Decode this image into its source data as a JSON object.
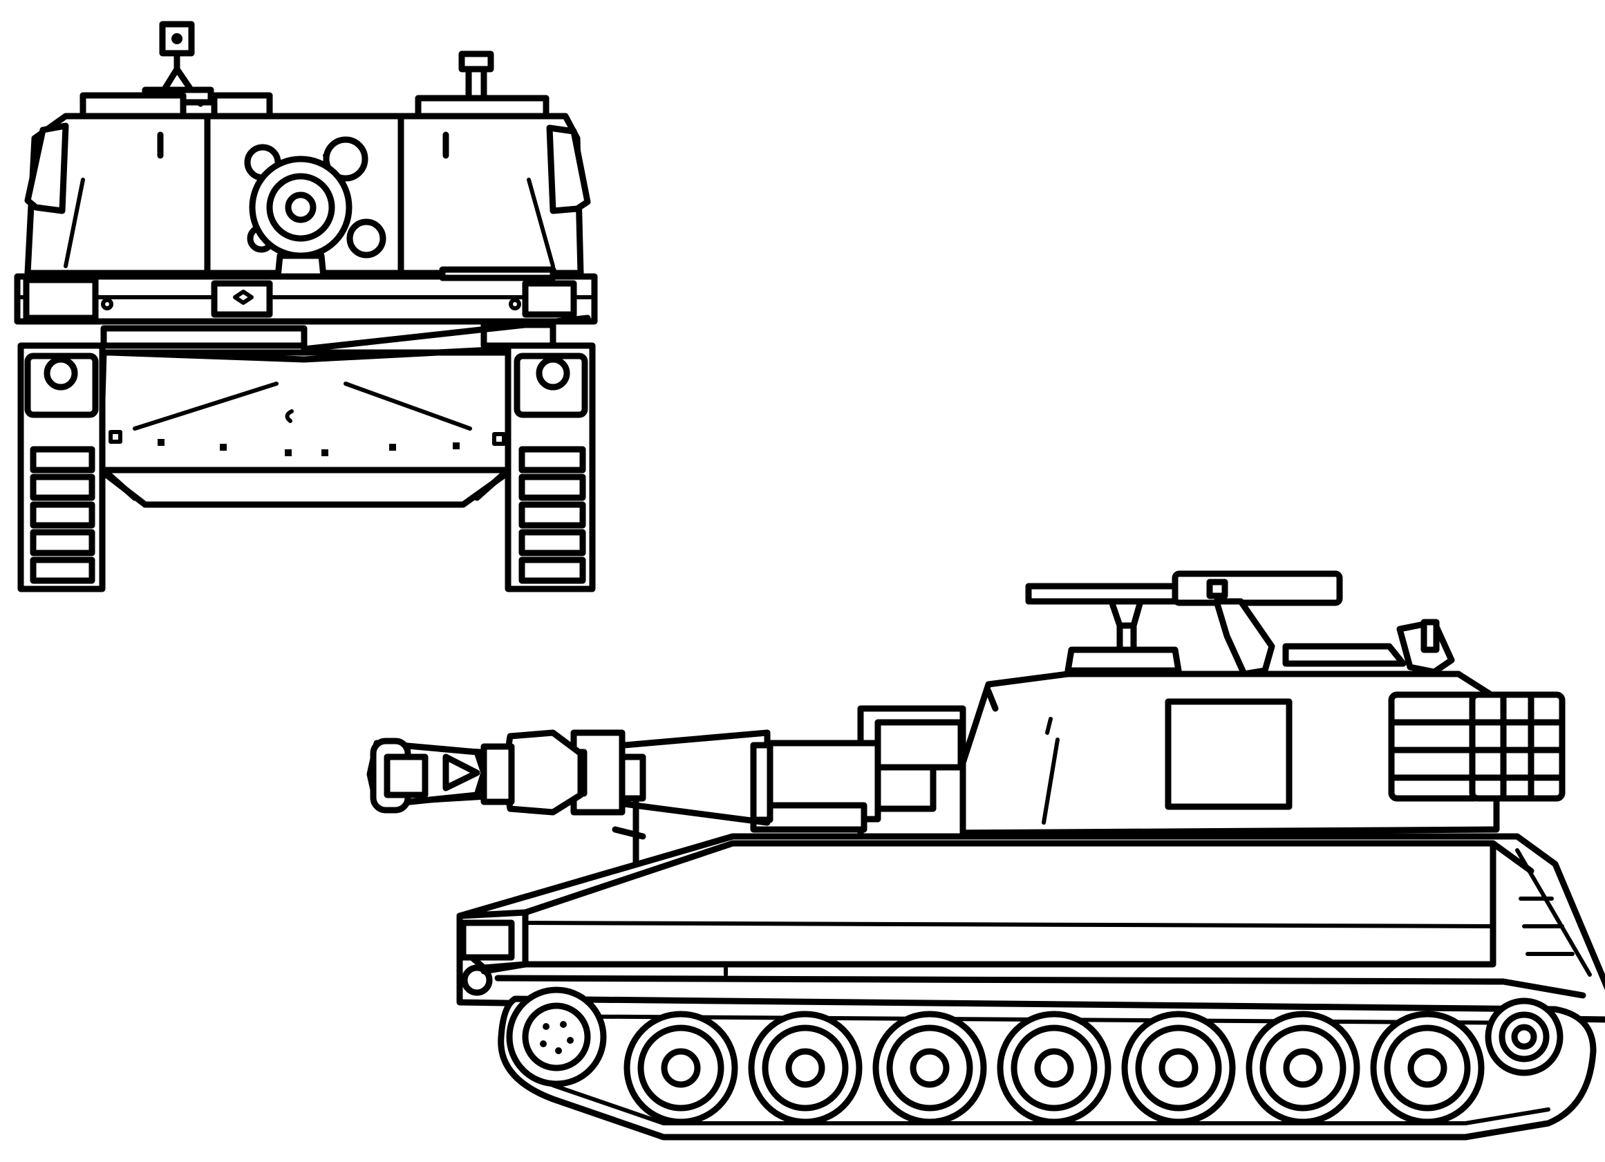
{
  "image": {
    "background": "#ffffff",
    "line_color": "#000000"
  },
  "views": [
    {
      "name": "front-view"
    },
    {
      "name": "side-view"
    }
  ],
  "side_view": {
    "road_wheel_count": 7
  }
}
